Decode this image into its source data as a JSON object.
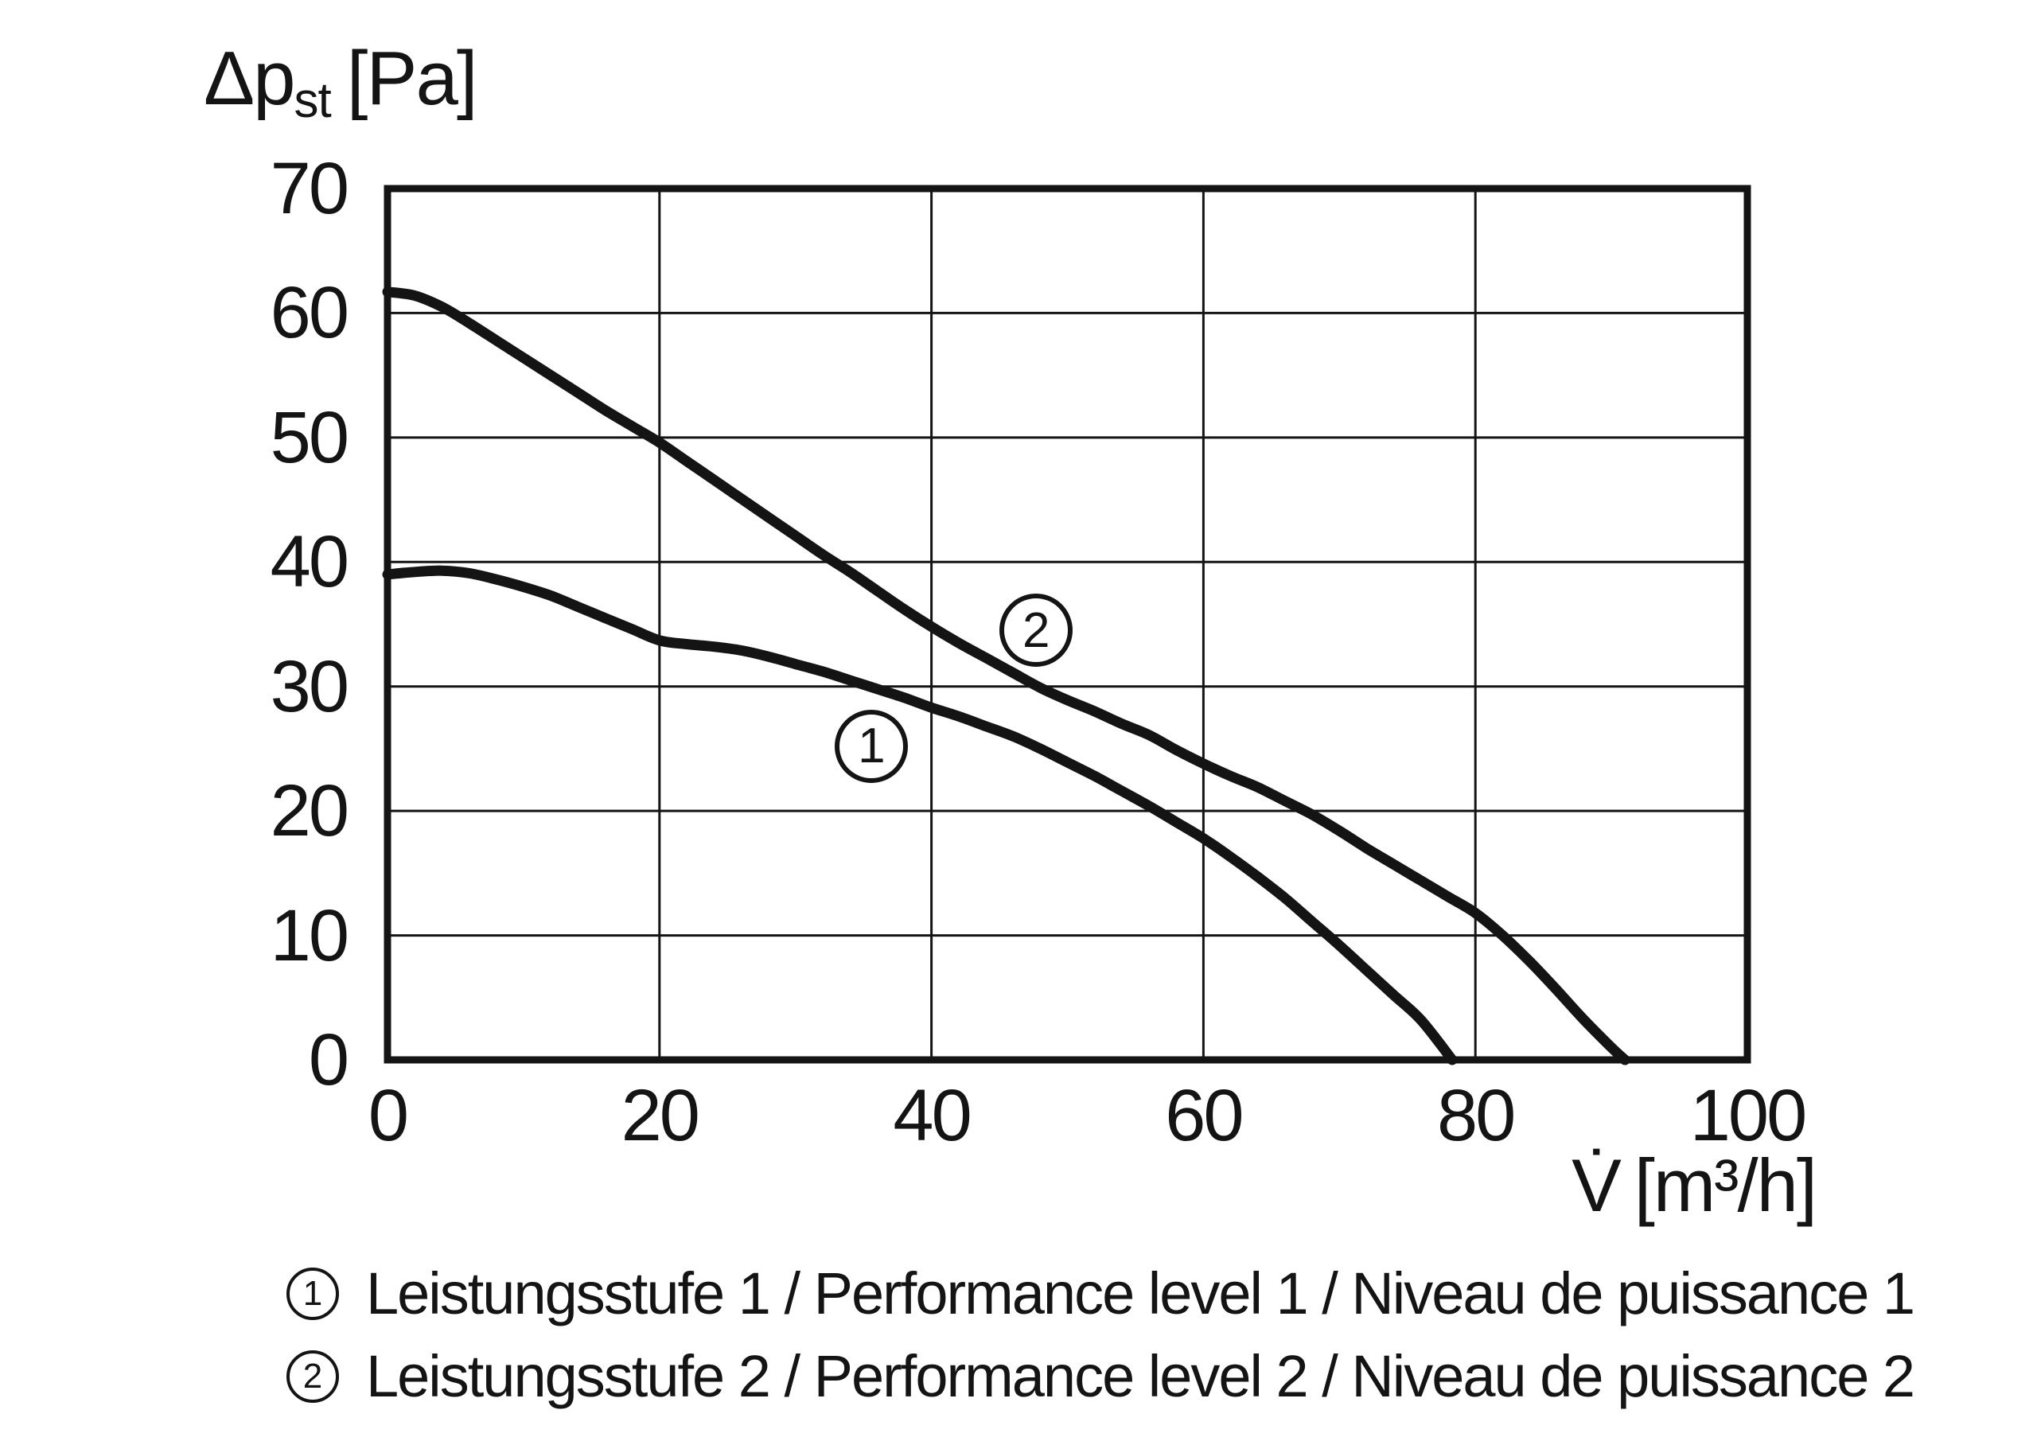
{
  "figure": {
    "background": "#ffffff",
    "ink_color": "#141414"
  },
  "axis_labels": {
    "y_main": "Δp",
    "y_sub": "st",
    "y_unit": "[Pa]",
    "x_main": "V̇",
    "x_unit": "[m³/h]"
  },
  "legend": [
    {
      "symbol": "1",
      "text": "Leistungsstufe 1 / Performance level 1 / Niveau de puissance 1"
    },
    {
      "symbol": "2",
      "text": "Leistungsstufe 2 / Performance level 2 / Niveau de puissance 2"
    }
  ],
  "chart_data": {
    "type": "line",
    "title": "",
    "xlabel": "V̇ [m³/h]",
    "ylabel": "Δpst [Pa]",
    "xlim": [
      0,
      100
    ],
    "ylim": [
      0,
      70
    ],
    "x_ticks": [
      0,
      20,
      40,
      60,
      80,
      100
    ],
    "y_ticks": [
      0,
      10,
      20,
      30,
      40,
      50,
      60,
      70
    ],
    "grid": true,
    "legend_position": "below",
    "line_color": "#141414",
    "series": [
      {
        "name": "1",
        "label": "Leistungsstufe 1 / Performance level 1 / Niveau de puissance 1",
        "label_pos": [
          35.6,
          25.2
        ],
        "points": [
          [
            0,
            39.0
          ],
          [
            2,
            39.2
          ],
          [
            4,
            39.3
          ],
          [
            6,
            39.1
          ],
          [
            8,
            38.6
          ],
          [
            10,
            38.0
          ],
          [
            12,
            37.3
          ],
          [
            14,
            36.4
          ],
          [
            16,
            35.5
          ],
          [
            18,
            34.6
          ],
          [
            20,
            33.7
          ],
          [
            22,
            33.4
          ],
          [
            24,
            33.2
          ],
          [
            26,
            32.9
          ],
          [
            28,
            32.4
          ],
          [
            30,
            31.8
          ],
          [
            32,
            31.2
          ],
          [
            34,
            30.5
          ],
          [
            36,
            29.8
          ],
          [
            38,
            29.1
          ],
          [
            40,
            28.3
          ],
          [
            42,
            27.6
          ],
          [
            44,
            26.8
          ],
          [
            46,
            26.0
          ],
          [
            48,
            25.0
          ],
          [
            50,
            23.9
          ],
          [
            52,
            22.8
          ],
          [
            54,
            21.6
          ],
          [
            56,
            20.4
          ],
          [
            58,
            19.1
          ],
          [
            60,
            17.8
          ],
          [
            62,
            16.3
          ],
          [
            64,
            14.7
          ],
          [
            66,
            13.0
          ],
          [
            68,
            11.1
          ],
          [
            70,
            9.2
          ],
          [
            72,
            7.2
          ],
          [
            74,
            5.2
          ],
          [
            76,
            3.2
          ],
          [
            78.3,
            0
          ]
        ]
      },
      {
        "name": "2",
        "label": "Leistungsstufe 2 / Performance level 2 / Niveau de puissance 2",
        "label_pos": [
          47.7,
          34.5
        ],
        "points": [
          [
            0,
            61.7
          ],
          [
            2,
            61.4
          ],
          [
            4,
            60.5
          ],
          [
            6,
            59.2
          ],
          [
            8,
            57.8
          ],
          [
            10,
            56.4
          ],
          [
            12,
            55.0
          ],
          [
            14,
            53.6
          ],
          [
            16,
            52.2
          ],
          [
            18,
            50.9
          ],
          [
            20,
            49.6
          ],
          [
            22,
            48.1
          ],
          [
            24,
            46.6
          ],
          [
            26,
            45.1
          ],
          [
            28,
            43.6
          ],
          [
            30,
            42.1
          ],
          [
            32,
            40.6
          ],
          [
            34,
            39.2
          ],
          [
            36,
            37.7
          ],
          [
            38,
            36.2
          ],
          [
            40,
            34.8
          ],
          [
            42,
            33.5
          ],
          [
            44,
            32.3
          ],
          [
            46,
            31.1
          ],
          [
            48,
            29.9
          ],
          [
            50,
            28.9
          ],
          [
            52,
            28.0
          ],
          [
            54,
            27.0
          ],
          [
            56,
            26.1
          ],
          [
            58,
            24.9
          ],
          [
            60,
            23.8
          ],
          [
            62,
            22.8
          ],
          [
            64,
            21.9
          ],
          [
            66,
            20.8
          ],
          [
            68,
            19.7
          ],
          [
            70,
            18.4
          ],
          [
            72,
            17.0
          ],
          [
            74,
            15.7
          ],
          [
            76,
            14.4
          ],
          [
            78,
            13.1
          ],
          [
            80,
            11.8
          ],
          [
            82,
            10.0
          ],
          [
            84,
            7.9
          ],
          [
            86,
            5.6
          ],
          [
            88,
            3.2
          ],
          [
            90,
            1.0
          ],
          [
            91,
            0
          ]
        ]
      }
    ]
  }
}
